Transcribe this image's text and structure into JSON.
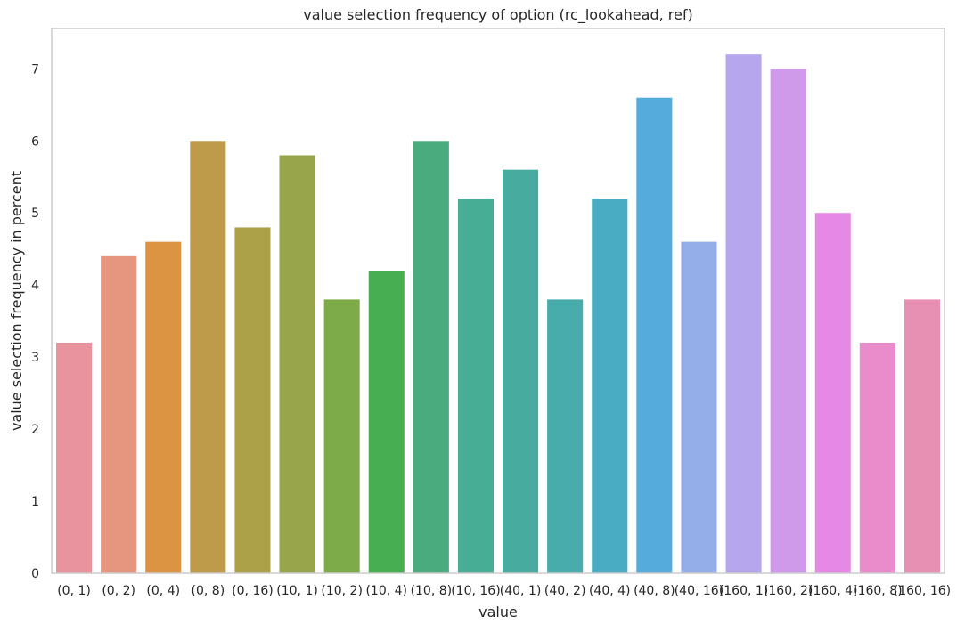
{
  "chart_data": {
    "type": "bar",
    "title": "value selection frequency of option (rc_lookahead, ref)",
    "xlabel": "value",
    "ylabel": "value selection frequency in percent",
    "ylim": [
      0,
      7.56
    ],
    "yticks": [
      "0",
      "1",
      "2",
      "3",
      "4",
      "5",
      "6",
      "7"
    ],
    "grid": false,
    "categories": [
      "(0, 1)",
      "(0, 2)",
      "(0, 4)",
      "(0, 8)",
      "(0, 16)",
      "(10, 1)",
      "(10, 2)",
      "(10, 4)",
      "(10, 8)",
      "(10, 16)",
      "(40, 1)",
      "(40, 2)",
      "(40, 4)",
      "(40, 8)",
      "(40, 16)",
      "(160, 1)",
      "(160, 2)",
      "(160, 4)",
      "(160, 8)",
      "(160, 16)"
    ],
    "values": [
      3.2,
      4.4,
      4.6,
      6.0,
      4.8,
      5.8,
      3.8,
      4.2,
      6.0,
      5.2,
      5.6,
      3.8,
      5.2,
      6.6,
      4.6,
      7.2,
      7.0,
      5.0,
      3.2,
      3.8
    ],
    "colors": [
      "#e8939d",
      "#e6957f",
      "#dc9443",
      "#be9b4a",
      "#aca048",
      "#98a54a",
      "#7eab49",
      "#48ae52",
      "#4aac7e",
      "#48ad95",
      "#48aba0",
      "#49acac",
      "#4aacc3",
      "#56abdd",
      "#93aee8",
      "#b5a6ed",
      "#d09aea",
      "#e689e6",
      "#ea8ccc",
      "#e88fb4"
    ]
  }
}
